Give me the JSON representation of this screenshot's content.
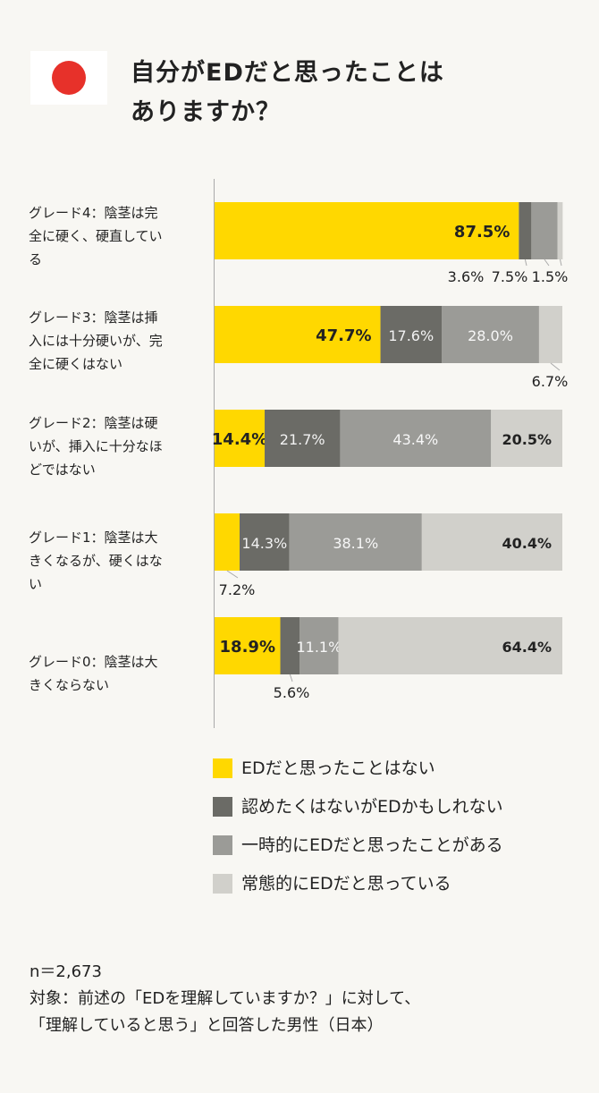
{
  "header": {
    "flag_icon": "japan-flag-icon",
    "title_line1": "自分がEDだと思ったことは",
    "title_line2": "ありますか？"
  },
  "colors": {
    "never": "#ffd800",
    "not_admit": "#6b6b66",
    "sometimes": "#9b9b97",
    "always": "#d1d0cb"
  },
  "chart_data": {
    "type": "bar",
    "orientation": "horizontal",
    "stacked": true,
    "xlim": [
      0,
      100
    ],
    "categories": [
      [
        "グレード4：陰茎は完",
        "全に硬く、硬直してい",
        "る"
      ],
      [
        "グレード3：陰茎は挿",
        "入には十分硬いが、完",
        "全に硬くはない"
      ],
      [
        "グレード2：陰茎は硬",
        "いが、挿入に十分なほ",
        "どではない"
      ],
      [
        "グレード1：陰茎は大",
        "きくなるが、硬くはな",
        "い"
      ],
      [
        "グレード0：陰茎は大",
        "きくならない"
      ]
    ],
    "series": [
      {
        "name": "EDだと思ったことはない",
        "values": [
          87.5,
          47.7,
          14.4,
          7.2,
          18.9
        ],
        "labels": [
          "87.5%",
          "47.7%",
          "14.4%",
          "7.2%",
          "18.9%"
        ]
      },
      {
        "name": "認めたくはないがEDかもしれない",
        "values": [
          3.6,
          17.6,
          21.7,
          14.3,
          5.6
        ],
        "labels": [
          "3.6%",
          "17.6%",
          "21.7%",
          "14.3%",
          "5.6%"
        ]
      },
      {
        "name": "一時的にEDだと思ったことがある",
        "values": [
          7.5,
          28.0,
          43.4,
          38.1,
          11.1
        ],
        "labels": [
          "7.5%",
          "28.0%",
          "43.4%",
          "38.1%",
          "11.1%"
        ]
      },
      {
        "name": "常態的にEDだと思っている",
        "values": [
          1.5,
          6.7,
          20.5,
          40.4,
          64.4
        ],
        "labels": [
          "1.5%",
          "6.7%",
          "20.5%",
          "40.4%",
          "64.4%"
        ]
      }
    ]
  },
  "footer": {
    "n": "n＝2,673",
    "target_line1": "対象：前述の「EDを理解していますか？」に対して、",
    "target_line2": "「理解していると思う」と回答した男性（日本）"
  }
}
